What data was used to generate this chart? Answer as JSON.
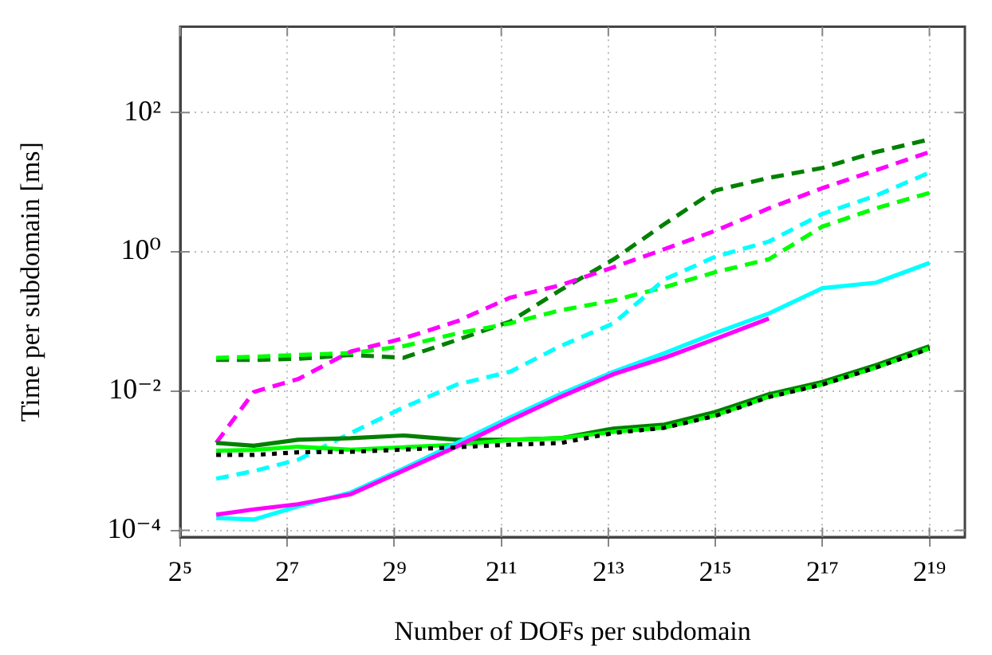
{
  "chart_data": {
    "type": "line",
    "xlabel": "Number of DOFs per subdomain",
    "ylabel": "Time per subdomain [ms]",
    "log": "xy",
    "grid": true,
    "x": [
      51,
      83,
      147,
      292,
      576,
      1152,
      2304,
      4390,
      8780,
      16950,
      32768,
      65536,
      131072,
      262144,
      524288
    ],
    "xlim": [
      32,
      830000
    ],
    "ylim": [
      8e-05,
      1700
    ],
    "xticks": [
      {
        "value": 32,
        "label": "2⁵"
      },
      {
        "value": 128,
        "label": "2⁷"
      },
      {
        "value": 512,
        "label": "2⁹"
      },
      {
        "value": 2048,
        "label": "2¹¹"
      },
      {
        "value": 8192,
        "label": "2¹³"
      },
      {
        "value": 32768,
        "label": "2¹⁵"
      },
      {
        "value": 131072,
        "label": "2¹⁷"
      },
      {
        "value": 524288,
        "label": "2¹⁹"
      }
    ],
    "yticks": [
      {
        "value": 0.0001,
        "label": "10⁻⁴"
      },
      {
        "value": 0.01,
        "label": "10⁻²"
      },
      {
        "value": 1,
        "label": "10⁰"
      },
      {
        "value": 100,
        "label": "10²"
      }
    ],
    "series": [
      {
        "color": "#008000",
        "line_style": "dashed",
        "values": [
          0.028,
          0.028,
          0.029,
          0.033,
          0.03,
          0.054,
          0.1,
          0.28,
          0.78,
          2.5,
          7.6,
          11.5,
          16,
          27,
          41
        ]
      },
      {
        "color": "#00ff00",
        "line_style": "dashed",
        "values": [
          0.03,
          0.031,
          0.033,
          0.035,
          0.044,
          0.067,
          0.094,
          0.144,
          0.2,
          0.31,
          0.51,
          0.78,
          2.3,
          4.2,
          7.0
        ]
      },
      {
        "color": "#ff00ff",
        "line_style": "dashed",
        "values": [
          0.0018,
          0.0097,
          0.0148,
          0.037,
          0.057,
          0.1,
          0.22,
          0.33,
          0.6,
          1.09,
          2.0,
          4.2,
          8.2,
          14.8,
          27
        ]
      },
      {
        "color": "#00ffff",
        "line_style": "dashed",
        "values": [
          0.00055,
          0.00071,
          0.00103,
          0.0025,
          0.0058,
          0.0124,
          0.019,
          0.044,
          0.094,
          0.4,
          0.85,
          1.4,
          3.5,
          6.4,
          13.7
        ]
      },
      {
        "color": "#008000",
        "line_style": "solid",
        "values": [
          0.0018,
          0.00164,
          0.002,
          0.0021,
          0.0023,
          0.002,
          0.002,
          0.0021,
          0.0029,
          0.0033,
          0.005,
          0.009,
          0.0135,
          0.0235,
          0.044
        ]
      },
      {
        "color": "#00ff00",
        "line_style": "solid",
        "values": [
          0.00139,
          0.00143,
          0.00159,
          0.00144,
          0.00156,
          0.0017,
          0.00198,
          0.0021,
          0.0026,
          0.003,
          0.0045,
          0.0083,
          0.0125,
          0.0218,
          0.041
        ]
      },
      {
        "color": "#00ffff",
        "line_style": "solid",
        "values": [
          0.00015,
          0.000143,
          0.00022,
          0.00035,
          0.00077,
          0.0018,
          0.0042,
          0.009,
          0.019,
          0.035,
          0.068,
          0.13,
          0.3,
          0.36,
          0.69
        ]
      },
      {
        "color": "#ff00ff",
        "line_style": "solid",
        "values": [
          0.000168,
          0.0002,
          0.000237,
          0.00033,
          0.00072,
          0.0016,
          0.0038,
          0.0082,
          0.0175,
          0.03,
          0.056,
          0.11,
          null,
          null,
          null
        ]
      },
      {
        "color": "#000000",
        "line_style": "dotted",
        "values": [
          0.00121,
          0.00121,
          0.00132,
          0.00134,
          0.00144,
          0.00156,
          0.0017,
          0.00179,
          0.0025,
          0.00297,
          0.0044,
          0.0082,
          0.0124,
          0.0217,
          0.0406
        ]
      }
    ]
  }
}
